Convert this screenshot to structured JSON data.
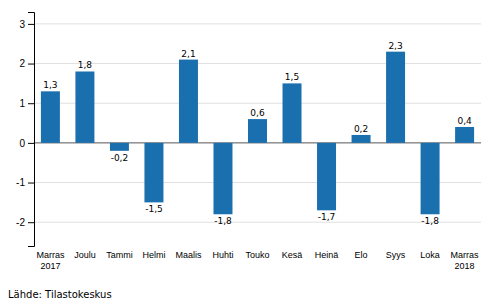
{
  "chart_data": {
    "type": "bar",
    "categories": [
      "Marras\n2017",
      "Joulu",
      "Tammi",
      "Helmi",
      "Maalis",
      "Huhti",
      "Touko",
      "Kesä",
      "Heinä",
      "Elo",
      "Syys",
      "Loka",
      "Marras\n2018"
    ],
    "values": [
      1.3,
      1.8,
      -0.2,
      -1.5,
      2.1,
      -1.8,
      0.6,
      1.5,
      -1.7,
      0.2,
      2.3,
      -1.8,
      0.4
    ],
    "value_labels": [
      "1,3",
      "1,8",
      "-0,2",
      "-1,5",
      "2,1",
      "-1,8",
      "0,6",
      "1,5",
      "-1,7",
      "0,2",
      "2,3",
      "-1,8",
      "0,4"
    ],
    "color": "#1a6faf",
    "ylim": [
      -2.6,
      3.3
    ],
    "yticks": [
      -2,
      -1,
      0,
      1,
      2,
      3
    ],
    "grid": true,
    "data_labels": true,
    "footer": "Lähde: Tilastokeskus"
  }
}
